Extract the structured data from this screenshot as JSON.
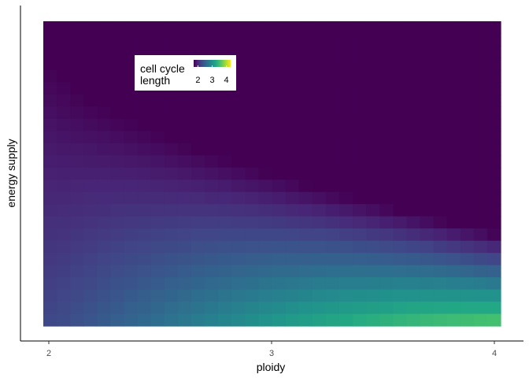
{
  "chart_data": {
    "type": "heatmap",
    "title": "",
    "xlabel": "ploidy",
    "ylabel": "energy supply",
    "xlim": [
      2,
      4
    ],
    "x_ticks": [
      "2",
      "3",
      "4"
    ],
    "y_ticks": [],
    "grid": false,
    "colormap": "viridis",
    "value_range": [
      1.7,
      4.3
    ],
    "legend": {
      "title_lines": [
        "cell cycle",
        "length"
      ],
      "tick_labels": [
        "2",
        "3",
        "4"
      ],
      "tick_values": [
        2,
        3,
        4
      ],
      "placement": "top-left"
    },
    "grid_size": {
      "columns": 34,
      "rows": 25
    },
    "values_description_model": {
      "min_value": 1.7,
      "max_value": 4.3,
      "highest_at": "high ploidy, low energy supply",
      "lowest_region": "low ploidy or high energy supply (saturated at minimum)"
    }
  }
}
